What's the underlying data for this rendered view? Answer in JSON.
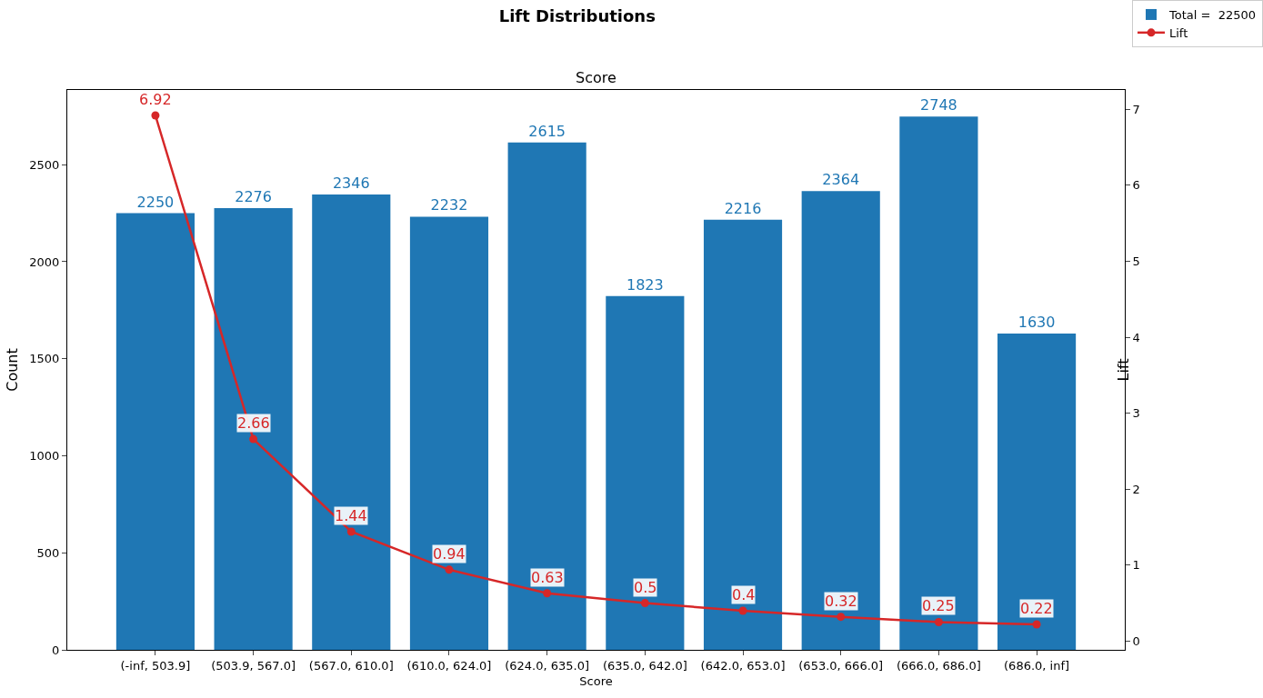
{
  "chart_data": {
    "type": "bar",
    "title": "Lift Distributions",
    "subtitle": "Score",
    "xlabel": "Score",
    "ylabel": "Count",
    "y2label": "Lift",
    "categories": [
      "(-inf, 503.9]",
      "(503.9, 567.0]",
      "(567.0, 610.0]",
      "(610.0, 624.0]",
      "(624.0, 635.0]",
      "(635.0, 642.0]",
      "(642.0, 653.0]",
      "(653.0, 666.0]",
      "(666.0, 686.0]",
      "(686.0, inf]"
    ],
    "series": [
      {
        "name": "Total =  22500",
        "color": "#1f77b4",
        "values": [
          2250,
          2276,
          2346,
          2232,
          2615,
          1823,
          2216,
          2364,
          2748,
          1630
        ]
      },
      {
        "name": "Lift",
        "type": "line",
        "axis": "y2",
        "color": "#d62728",
        "marker": "circle",
        "values": [
          6.92,
          2.66,
          1.44,
          0.94,
          0.63,
          0.5,
          0.4,
          0.32,
          0.25,
          0.22
        ]
      }
    ],
    "ylim": [
      0,
      2885
    ],
    "yticks": [
      0,
      500,
      1000,
      1500,
      2000,
      2500
    ],
    "y2lim": [
      -0.115,
      7.255
    ],
    "y2ticks": [
      0,
      1,
      2,
      3,
      4,
      5,
      6,
      7
    ],
    "data_labels": true,
    "grid": false,
    "legend": "top right",
    "line_style": "solid"
  }
}
